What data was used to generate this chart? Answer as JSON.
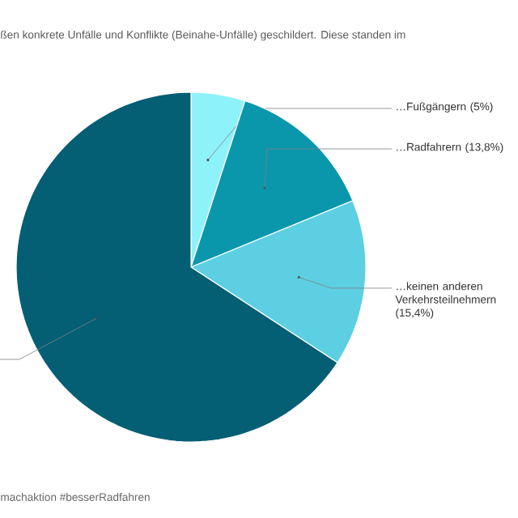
{
  "chart_data": {
    "type": "pie",
    "subtitle": "ßen konkrete Unfälle und Konflikte (Beinahe-Unfälle) geschildert. Diese standen im",
    "categories": [
      "…Fußgängern (5%)",
      "…Radfahrern (13,8%)",
      "…keinen anderen Verkehrsteilnehmern (15,4%)",
      null
    ],
    "values": [
      5,
      13.8,
      15.4,
      65.8
    ],
    "colors": [
      "#8ef2fa",
      "#0a97ac",
      "#5ccfe2",
      "#045e74"
    ],
    "annotations": [
      "machaktion #besserRadfahren"
    ]
  }
}
